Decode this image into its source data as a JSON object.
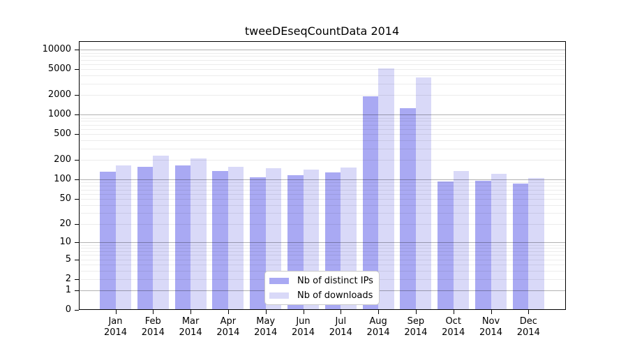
{
  "chart_data": {
    "type": "bar",
    "title": "tweeDEseqCountData 2014",
    "categories": [
      {
        "line1": "Jan",
        "line2": "2014"
      },
      {
        "line1": "Feb",
        "line2": "2014"
      },
      {
        "line1": "Mar",
        "line2": "2014"
      },
      {
        "line1": "Apr",
        "line2": "2014"
      },
      {
        "line1": "May",
        "line2": "2014"
      },
      {
        "line1": "Jun",
        "line2": "2014"
      },
      {
        "line1": "Jul",
        "line2": "2014"
      },
      {
        "line1": "Aug",
        "line2": "2014"
      },
      {
        "line1": "Sep",
        "line2": "2014"
      },
      {
        "line1": "Oct",
        "line2": "2014"
      },
      {
        "line1": "Nov",
        "line2": "2014"
      },
      {
        "line1": "Dec",
        "line2": "2014"
      }
    ],
    "series": [
      {
        "name": "Nb of distinct IPs",
        "color": "#a9a9f3",
        "values": [
          131,
          158,
          166,
          136,
          108,
          117,
          130,
          1900,
          1260,
          94,
          95,
          86
        ]
      },
      {
        "name": "Nb of downloads",
        "color": "#d9d9f8",
        "values": [
          164,
          233,
          213,
          159,
          150,
          143,
          155,
          5100,
          3770,
          135,
          122,
          106
        ]
      }
    ],
    "xlabel": "",
    "ylabel": "",
    "y_axis": {
      "scale": "log10(value+1)",
      "tick_values": [
        10000,
        5000,
        2000,
        1000,
        500,
        200,
        100,
        50,
        20,
        10,
        5,
        2,
        1,
        0
      ],
      "ylim": [
        0,
        13000
      ]
    },
    "grid": {
      "on": true,
      "minor_values": [
        2,
        3,
        4,
        5,
        6,
        7,
        8,
        9,
        20,
        30,
        40,
        50,
        60,
        70,
        80,
        90,
        200,
        300,
        400,
        500,
        600,
        700,
        800,
        900,
        2000,
        3000,
        4000,
        5000,
        6000,
        7000,
        8000,
        9000
      ],
      "major_values": [
        1,
        10,
        100,
        1000,
        10000
      ]
    },
    "legend": {
      "position": "inside-bottom-center"
    }
  }
}
